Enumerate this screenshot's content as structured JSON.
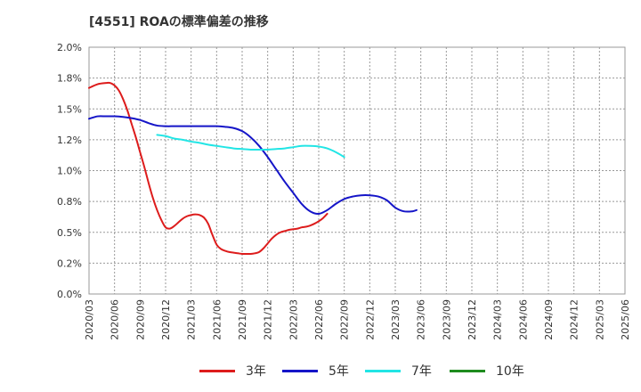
{
  "title": "[4551]  ROAの標準偏差の推移",
  "chart_data": {
    "type": "line",
    "title": "[4551]  ROAの標準偏差の推移",
    "xlabel": "",
    "ylabel": "",
    "x_ticks": [
      "2020/03",
      "2020/06",
      "2020/09",
      "2020/12",
      "2021/03",
      "2021/06",
      "2021/09",
      "2021/12",
      "2022/03",
      "2022/06",
      "2022/09",
      "2022/12",
      "2023/03",
      "2023/06",
      "2023/09",
      "2023/12",
      "2024/03",
      "2024/06",
      "2024/09",
      "2024/12",
      "2025/03",
      "2025/06"
    ],
    "y_ticks": [
      "0.0%",
      "0.2%",
      "0.5%",
      "0.8%",
      "1.0%",
      "1.2%",
      "1.5%",
      "1.8%",
      "2.0%"
    ],
    "ylim": [
      0,
      2.0
    ],
    "y_unit": "%",
    "grid": "horizontal dashed",
    "legend_position": "bottom",
    "series": [
      {
        "name": "3年",
        "color": "#dd1c1c",
        "points": [
          [
            0,
            1.67
          ],
          [
            1,
            1.7
          ],
          [
            2,
            1.71
          ],
          [
            2.5,
            1.71
          ],
          [
            3,
            1.69
          ],
          [
            3.5,
            1.65
          ],
          [
            4,
            1.58
          ],
          [
            4.5,
            1.49
          ],
          [
            5,
            1.38
          ],
          [
            5.5,
            1.27
          ],
          [
            6,
            1.15
          ],
          [
            6.5,
            1.03
          ],
          [
            7,
            0.9
          ],
          [
            7.5,
            0.78
          ],
          [
            8,
            0.68
          ],
          [
            8.5,
            0.6
          ],
          [
            9,
            0.54
          ],
          [
            9.5,
            0.53
          ],
          [
            10,
            0.55
          ],
          [
            10.5,
            0.58
          ],
          [
            11,
            0.61
          ],
          [
            11.5,
            0.63
          ],
          [
            12,
            0.64
          ],
          [
            12.5,
            0.645
          ],
          [
            13,
            0.64
          ],
          [
            13.5,
            0.62
          ],
          [
            14,
            0.57
          ],
          [
            14.5,
            0.48
          ],
          [
            15,
            0.4
          ],
          [
            15.5,
            0.365
          ],
          [
            16,
            0.35
          ],
          [
            16.5,
            0.34
          ],
          [
            17,
            0.335
          ],
          [
            17.5,
            0.33
          ],
          [
            18,
            0.325
          ],
          [
            18.5,
            0.325
          ],
          [
            19,
            0.325
          ],
          [
            19.5,
            0.33
          ],
          [
            20,
            0.34
          ],
          [
            20.5,
            0.37
          ],
          [
            21,
            0.41
          ],
          [
            21.5,
            0.45
          ],
          [
            22,
            0.48
          ],
          [
            22.5,
            0.5
          ],
          [
            23,
            0.51
          ],
          [
            23.5,
            0.52
          ],
          [
            24,
            0.525
          ],
          [
            24.5,
            0.53
          ],
          [
            25,
            0.54
          ],
          [
            25.5,
            0.545
          ],
          [
            26,
            0.555
          ],
          [
            26.5,
            0.57
          ],
          [
            27,
            0.59
          ],
          [
            27.5,
            0.615
          ],
          [
            28,
            0.65
          ]
        ]
      },
      {
        "name": "5年",
        "color": "#1515c8",
        "points": [
          [
            0,
            1.42
          ],
          [
            1,
            1.44
          ],
          [
            2,
            1.44
          ],
          [
            3,
            1.44
          ],
          [
            4,
            1.435
          ],
          [
            5,
            1.425
          ],
          [
            6,
            1.41
          ],
          [
            7,
            1.385
          ],
          [
            8,
            1.365
          ],
          [
            9,
            1.36
          ],
          [
            10,
            1.36
          ],
          [
            11,
            1.36
          ],
          [
            12,
            1.36
          ],
          [
            13,
            1.36
          ],
          [
            14,
            1.36
          ],
          [
            15,
            1.36
          ],
          [
            16,
            1.355
          ],
          [
            17,
            1.345
          ],
          [
            18,
            1.32
          ],
          [
            19,
            1.27
          ],
          [
            20,
            1.2
          ],
          [
            21,
            1.11
          ],
          [
            22,
            1.01
          ],
          [
            23,
            0.91
          ],
          [
            24,
            0.82
          ],
          [
            25,
            0.73
          ],
          [
            26,
            0.67
          ],
          [
            27,
            0.65
          ],
          [
            28,
            0.68
          ],
          [
            29,
            0.73
          ],
          [
            30,
            0.77
          ],
          [
            31,
            0.79
          ],
          [
            32,
            0.8
          ],
          [
            33,
            0.8
          ],
          [
            34,
            0.79
          ],
          [
            35,
            0.76
          ],
          [
            36,
            0.7
          ],
          [
            37,
            0.67
          ],
          [
            38,
            0.67
          ],
          [
            38.5,
            0.68
          ]
        ]
      },
      {
        "name": "7年",
        "color": "#22e5e5",
        "points": [
          [
            8,
            1.29
          ],
          [
            9,
            1.28
          ],
          [
            10,
            1.26
          ],
          [
            11,
            1.25
          ],
          [
            12,
            1.235
          ],
          [
            13,
            1.225
          ],
          [
            14,
            1.21
          ],
          [
            15,
            1.2
          ],
          [
            16,
            1.19
          ],
          [
            17,
            1.18
          ],
          [
            18,
            1.175
          ],
          [
            19,
            1.17
          ],
          [
            20,
            1.17
          ],
          [
            21,
            1.17
          ],
          [
            22,
            1.175
          ],
          [
            23,
            1.18
          ],
          [
            24,
            1.19
          ],
          [
            25,
            1.2
          ],
          [
            26,
            1.2
          ],
          [
            27,
            1.195
          ],
          [
            28,
            1.18
          ],
          [
            29,
            1.15
          ],
          [
            30,
            1.11
          ]
        ]
      },
      {
        "name": "10年",
        "color": "#1e8c1e",
        "points": []
      }
    ]
  }
}
